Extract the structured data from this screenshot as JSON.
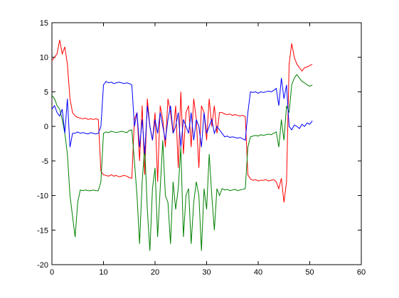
{
  "chart_data": {
    "type": "line",
    "x": [
      0,
      0.5,
      1,
      1.5,
      2,
      2.5,
      3,
      3.5,
      4,
      4.5,
      5,
      5.5,
      6,
      6.5,
      7,
      7.5,
      8,
      8.5,
      9,
      9.5,
      10,
      10.5,
      11,
      11.5,
      12,
      12.5,
      13,
      13.5,
      14,
      14.5,
      15,
      15.5,
      16,
      16.5,
      17,
      17.5,
      18,
      18.5,
      19,
      19.5,
      20,
      20.5,
      21,
      21.5,
      22,
      22.5,
      23,
      23.5,
      24,
      24.5,
      25,
      25.5,
      26,
      26.5,
      27,
      27.5,
      28,
      28.5,
      29,
      29.5,
      30,
      30.5,
      31,
      31.5,
      32,
      32.5,
      33,
      33.5,
      34,
      34.5,
      35,
      35.5,
      36,
      36.5,
      37,
      37.5,
      38,
      38.5,
      39,
      39.5,
      40,
      40.5,
      41,
      41.5,
      42,
      42.5,
      43,
      43.5,
      44,
      44.5,
      45,
      45.5,
      46,
      46.5,
      47,
      47.5,
      48,
      48.5,
      49,
      49.5,
      50,
      50.5
    ],
    "series": [
      {
        "color": "#ff0000",
        "values": [
          9.5,
          10,
          10.5,
          12.5,
          10.5,
          11.5,
          9,
          4,
          2,
          1.5,
          1.3,
          1.2,
          1.1,
          1.2,
          1.0,
          1.1,
          1.0,
          1.1,
          1.0,
          -6.5,
          -7,
          -7.1,
          -7.2,
          -7,
          -7.2,
          -7.1,
          -7.3,
          -7.2,
          -7.1,
          -7.2,
          -7.4,
          -7.5,
          1,
          2,
          -5,
          3,
          -7,
          4,
          0,
          -2,
          2,
          -8,
          3,
          1,
          -3,
          4,
          2,
          -1,
          3,
          -6,
          5,
          -4,
          2,
          3,
          -3,
          4,
          1,
          -6,
          3,
          2,
          -2,
          4,
          0,
          3,
          -1,
          2,
          2,
          1.8,
          1.7,
          1.8,
          1.6,
          1.7,
          1.6,
          1.5,
          1.6,
          1.4,
          -7,
          -7.6,
          -7.8,
          -7.7,
          -7.9,
          -7.8,
          -7.8,
          -7.7,
          -7.9,
          -7.8,
          -7.7,
          -8,
          -9,
          -7.5,
          -11,
          -8,
          9,
          12,
          10,
          9,
          8.5,
          8,
          8.5,
          8.6,
          8.8,
          9
        ]
      },
      {
        "color": "#008000",
        "values": [
          4.5,
          4,
          3,
          2.5,
          1,
          -1,
          -4,
          -10,
          -13,
          -16,
          -11,
          -9.2,
          -9.3,
          -9.2,
          -9.3,
          -9.3,
          -9.2,
          -9.3,
          -9.3,
          -8,
          -1,
          -0.8,
          -0.9,
          -0.7,
          -0.8,
          -0.9,
          -0.8,
          -0.7,
          -0.8,
          -0.9,
          -0.6,
          -0.5,
          -5,
          -10,
          -17,
          -8,
          -3,
          -12,
          -18,
          -9,
          -6,
          -16,
          -9,
          -2,
          -10,
          -11,
          -17,
          -8,
          -12,
          -9,
          -3,
          -16,
          -10,
          -9,
          -17,
          -11,
          -8,
          -10,
          -18,
          -9,
          -12,
          -4,
          -10,
          -15,
          -9,
          -10,
          -9,
          -9.2,
          -9.1,
          -9.3,
          -9.2,
          -9.1,
          -9.3,
          -9.2,
          -9.1,
          -9,
          -3,
          -1.5,
          -1.4,
          -1.3,
          -1.4,
          -1.2,
          -1.3,
          -1.2,
          -1.1,
          -1.2,
          -1,
          -0.8,
          -3,
          1,
          -2,
          3,
          2,
          6,
          7,
          7.5,
          7,
          6.5,
          6.3,
          6,
          5.8,
          6
        ]
      },
      {
        "color": "#0000ff",
        "values": [
          2.5,
          3,
          2,
          1.5,
          2.5,
          -1,
          4,
          -3,
          -1,
          -1,
          -0.8,
          -1,
          -0.9,
          -1,
          -1.1,
          -0.9,
          -1,
          -1.1,
          -1,
          0,
          6,
          6.5,
          6.3,
          6.4,
          6.2,
          6.3,
          6.4,
          6.3,
          6.2,
          6.3,
          6.2,
          6,
          0,
          2,
          -3,
          1,
          -4,
          3,
          0,
          -2,
          1,
          -1,
          2,
          0,
          -2,
          1,
          3,
          -1,
          0,
          2,
          -3,
          1,
          0,
          -1,
          2,
          -2,
          1,
          0,
          -3,
          2,
          -1,
          0,
          1,
          -1,
          0,
          -0.5,
          -1,
          -1.5,
          -1.4,
          -1.6,
          -1.5,
          -1.6,
          -1.7,
          -1.6,
          -1.8,
          -2,
          2,
          5,
          4.9,
          5,
          4.8,
          5,
          4.9,
          5,
          5.1,
          5,
          5.2,
          5.5,
          3,
          7,
          4,
          6,
          0,
          -0.5,
          0.2,
          0,
          -0.3,
          0.3,
          0,
          0.5,
          0.3,
          0.8
        ]
      }
    ],
    "xlim": [
      0,
      60
    ],
    "xticks": [
      0,
      10,
      20,
      30,
      40,
      50,
      60
    ],
    "ylim": [
      -20,
      15
    ],
    "yticks": [
      -20,
      -15,
      -10,
      -5,
      0,
      5,
      10,
      15
    ]
  }
}
